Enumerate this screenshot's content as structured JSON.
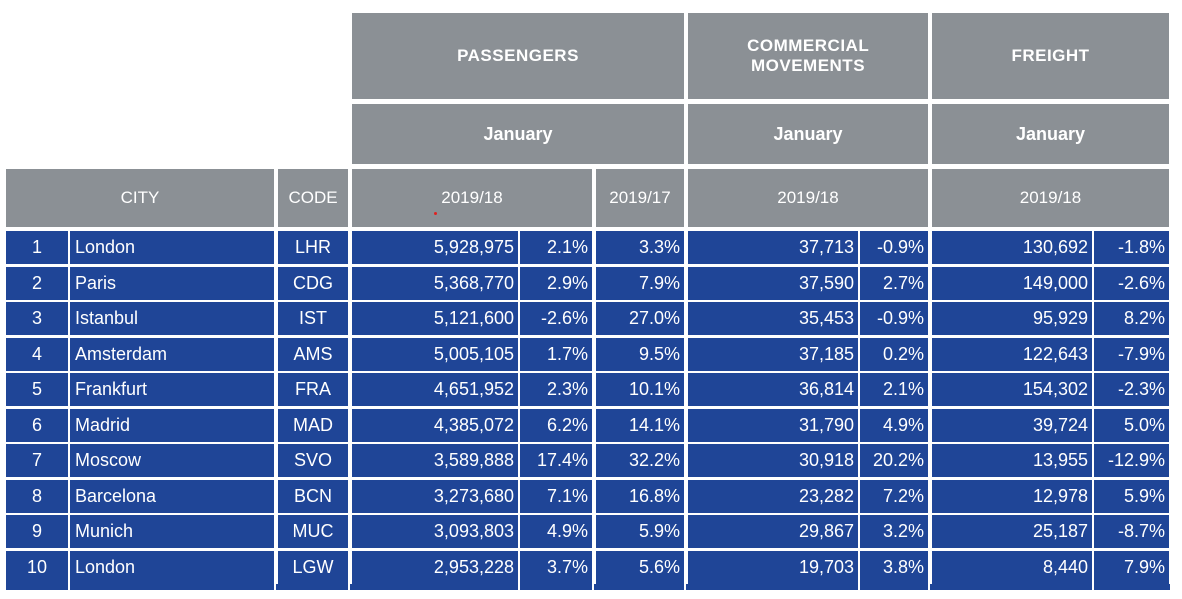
{
  "header": {
    "passengers": "PASSENGERS",
    "commercial_movements": "COMMERCIAL MOVEMENTS",
    "freight": "FREIGHT",
    "month_passengers": "January",
    "month_movements": "January",
    "month_freight": "January",
    "city": "CITY",
    "code": "CODE",
    "pax_period_1": "2019/18",
    "pax_period_2": "2019/17",
    "mov_period": "2019/18",
    "frt_period": "2019/18"
  },
  "rows": [
    {
      "rank": "1",
      "city": "London",
      "code": "LHR",
      "passengers": "5,928,975",
      "pax_change_18": "2.1%",
      "pax_change_17": "3.3%",
      "movements": "37,713",
      "mov_change": "-0.9%",
      "freight": "130,692",
      "frt_change": "-1.8%"
    },
    {
      "rank": "2",
      "city": "Paris",
      "code": "CDG",
      "passengers": "5,368,770",
      "pax_change_18": "2.9%",
      "pax_change_17": "7.9%",
      "movements": "37,590",
      "mov_change": "2.7%",
      "freight": "149,000",
      "frt_change": "-2.6%"
    },
    {
      "rank": "3",
      "city": "Istanbul",
      "code": "IST",
      "passengers": "5,121,600",
      "pax_change_18": "-2.6%",
      "pax_change_17": "27.0%",
      "movements": "35,453",
      "mov_change": "-0.9%",
      "freight": "95,929",
      "frt_change": "8.2%"
    },
    {
      "rank": "4",
      "city": "Amsterdam",
      "code": "AMS",
      "passengers": "5,005,105",
      "pax_change_18": "1.7%",
      "pax_change_17": "9.5%",
      "movements": "37,185",
      "mov_change": "0.2%",
      "freight": "122,643",
      "frt_change": "-7.9%"
    },
    {
      "rank": "5",
      "city": "Frankfurt",
      "code": "FRA",
      "passengers": "4,651,952",
      "pax_change_18": "2.3%",
      "pax_change_17": "10.1%",
      "movements": "36,814",
      "mov_change": "2.1%",
      "freight": "154,302",
      "frt_change": "-2.3%"
    },
    {
      "rank": "6",
      "city": "Madrid",
      "code": "MAD",
      "passengers": "4,385,072",
      "pax_change_18": "6.2%",
      "pax_change_17": "14.1%",
      "movements": "31,790",
      "mov_change": "4.9%",
      "freight": "39,724",
      "frt_change": "5.0%"
    },
    {
      "rank": "7",
      "city": "Moscow",
      "code": "SVO",
      "passengers": "3,589,888",
      "pax_change_18": "17.4%",
      "pax_change_17": "32.2%",
      "movements": "30,918",
      "mov_change": "20.2%",
      "freight": "13,955",
      "frt_change": "-12.9%"
    },
    {
      "rank": "8",
      "city": "Barcelona",
      "code": "BCN",
      "passengers": "3,273,680",
      "pax_change_18": "7.1%",
      "pax_change_17": "16.8%",
      "movements": "23,282",
      "mov_change": "7.2%",
      "freight": "12,978",
      "frt_change": "5.9%"
    },
    {
      "rank": "9",
      "city": "Munich",
      "code": "MUC",
      "passengers": "3,093,803",
      "pax_change_18": "4.9%",
      "pax_change_17": "5.9%",
      "movements": "29,867",
      "mov_change": "3.2%",
      "freight": "25,187",
      "frt_change": "-8.7%"
    },
    {
      "rank": "10",
      "city": "London",
      "code": "LGW",
      "passengers": "2,953,228",
      "pax_change_18": "3.7%",
      "pax_change_17": "5.6%",
      "movements": "19,703",
      "mov_change": "3.8%",
      "freight": "8,440",
      "frt_change": "7.9%"
    }
  ]
}
